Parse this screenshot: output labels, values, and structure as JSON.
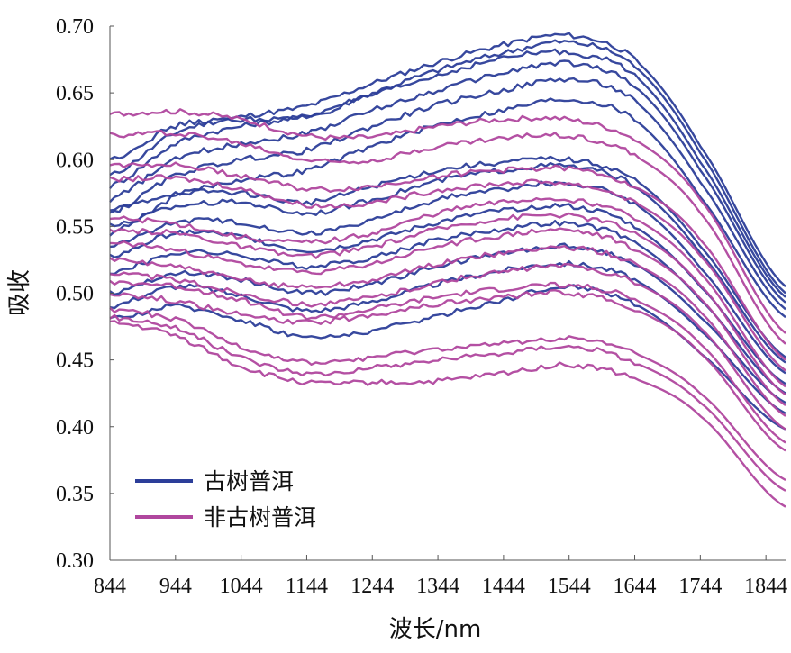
{
  "chart_data": {
    "type": "line",
    "xlabel": "波长/nm",
    "ylabel": "吸收",
    "xlim": [
      844,
      1874
    ],
    "ylim": [
      0.3,
      0.7
    ],
    "x": [
      844,
      944,
      1044,
      1144,
      1244,
      1344,
      1444,
      1544,
      1644,
      1744,
      1874
    ],
    "x_ticks": [
      "844",
      "944",
      "1044",
      "1144",
      "1244",
      "1344",
      "1444",
      "1544",
      "1644",
      "1744",
      "1844"
    ],
    "x_tick_values": [
      844,
      944,
      1044,
      1144,
      1244,
      1344,
      1444,
      1544,
      1644,
      1744,
      1844
    ],
    "y_ticks": [
      "0.30",
      "0.35",
      "0.40",
      "0.45",
      "0.50",
      "0.55",
      "0.60",
      "0.65",
      "0.70"
    ],
    "y_tick_values": [
      0.3,
      0.35,
      0.4,
      0.45,
      0.5,
      0.55,
      0.6,
      0.65,
      0.7
    ],
    "grid": false,
    "legend_position": "bottom-left",
    "groups": [
      {
        "name": "古树普洱",
        "color": "#2c3e99",
        "series": [
          {
            "values": [
              0.588,
              0.62,
              0.632,
              0.64,
              0.657,
              0.673,
              0.686,
              0.693,
              0.675,
              0.61,
              0.505
            ]
          },
          {
            "values": [
              0.58,
              0.612,
              0.625,
              0.633,
              0.65,
              0.667,
              0.68,
              0.688,
              0.67,
              0.605,
              0.5
            ]
          },
          {
            "values": [
              0.6,
              0.625,
              0.63,
              0.632,
              0.648,
              0.663,
              0.676,
              0.68,
              0.663,
              0.598,
              0.497
            ]
          },
          {
            "values": [
              0.57,
              0.6,
              0.612,
              0.62,
              0.637,
              0.652,
              0.665,
              0.672,
              0.655,
              0.592,
              0.493
            ]
          },
          {
            "values": [
              0.56,
              0.588,
              0.6,
              0.607,
              0.625,
              0.641,
              0.652,
              0.66,
              0.644,
              0.583,
              0.488
            ]
          },
          {
            "values": [
              0.545,
              0.572,
              0.585,
              0.592,
              0.61,
              0.626,
              0.637,
              0.645,
              0.63,
              0.572,
              0.482
            ]
          },
          {
            "values": [
              0.562,
              0.575,
              0.575,
              0.568,
              0.58,
              0.592,
              0.598,
              0.6,
              0.585,
              0.535,
              0.452
            ]
          },
          {
            "values": [
              0.55,
              0.565,
              0.568,
              0.56,
              0.57,
              0.584,
              0.592,
              0.595,
              0.58,
              0.53,
              0.448
            ]
          },
          {
            "values": [
              0.535,
              0.553,
              0.553,
              0.545,
              0.555,
              0.57,
              0.578,
              0.582,
              0.567,
              0.519,
              0.44
            ]
          },
          {
            "values": [
              0.527,
              0.545,
              0.542,
              0.532,
              0.54,
              0.553,
              0.562,
              0.565,
              0.55,
              0.505,
              0.432
            ]
          },
          {
            "values": [
              0.515,
              0.53,
              0.528,
              0.52,
              0.527,
              0.54,
              0.548,
              0.552,
              0.538,
              0.495,
              0.425
            ]
          },
          {
            "values": [
              0.5,
              0.515,
              0.51,
              0.5,
              0.507,
              0.52,
              0.53,
              0.535,
              0.522,
              0.482,
              0.418
            ]
          },
          {
            "values": [
              0.49,
              0.505,
              0.498,
              0.487,
              0.494,
              0.507,
              0.517,
              0.522,
              0.51,
              0.472,
              0.41
            ]
          },
          {
            "values": [
              0.48,
              0.49,
              0.48,
              0.467,
              0.472,
              0.483,
              0.495,
              0.505,
              0.492,
              0.455,
              0.398
            ]
          }
        ]
      },
      {
        "name": "非古树普洱",
        "color": "#b0479e",
        "series": [
          {
            "values": [
              0.634,
              0.636,
              0.63,
              0.618,
              0.617,
              0.625,
              0.63,
              0.63,
              0.615,
              0.57,
              0.47
            ]
          },
          {
            "values": [
              0.618,
              0.62,
              0.612,
              0.6,
              0.6,
              0.61,
              0.616,
              0.618,
              0.603,
              0.56,
              0.462
            ]
          },
          {
            "values": [
              0.596,
              0.596,
              0.588,
              0.578,
              0.58,
              0.588,
              0.592,
              0.593,
              0.58,
              0.54,
              0.45
            ]
          },
          {
            "values": [
              0.585,
              0.586,
              0.578,
              0.566,
              0.568,
              0.577,
              0.582,
              0.582,
              0.568,
              0.528,
              0.442
            ]
          },
          {
            "values": [
              0.556,
              0.552,
              0.542,
              0.538,
              0.545,
              0.56,
              0.568,
              0.57,
              0.556,
              0.515,
              0.43
            ]
          },
          {
            "values": [
              0.546,
              0.545,
              0.535,
              0.528,
              0.535,
              0.548,
              0.556,
              0.558,
              0.545,
              0.506,
              0.424
            ]
          },
          {
            "values": [
              0.538,
              0.532,
              0.522,
              0.516,
              0.522,
              0.535,
              0.543,
              0.547,
              0.533,
              0.496,
              0.416
            ]
          },
          {
            "values": [
              0.525,
              0.52,
              0.51,
              0.505,
              0.51,
              0.522,
              0.53,
              0.534,
              0.522,
              0.486,
              0.408
            ]
          },
          {
            "values": [
              0.515,
              0.51,
              0.5,
              0.492,
              0.497,
              0.508,
              0.516,
              0.52,
              0.508,
              0.474,
              0.398
            ]
          },
          {
            "values": [
              0.508,
              0.505,
              0.495,
              0.482,
              0.488,
              0.497,
              0.503,
              0.506,
              0.495,
              0.462,
              0.388
            ]
          },
          {
            "values": [
              0.5,
              0.494,
              0.484,
              0.478,
              0.484,
              0.492,
              0.497,
              0.5,
              0.488,
              0.455,
              0.382
            ]
          },
          {
            "values": [
              0.488,
              0.48,
              0.46,
              0.448,
              0.452,
              0.458,
              0.462,
              0.466,
              0.455,
              0.425,
              0.36
            ]
          },
          {
            "values": [
              0.482,
              0.474,
              0.452,
              0.44,
              0.444,
              0.45,
              0.455,
              0.46,
              0.448,
              0.418,
              0.352
            ]
          },
          {
            "values": [
              0.478,
              0.468,
              0.445,
              0.433,
              0.433,
              0.434,
              0.44,
              0.446,
              0.436,
              0.408,
              0.34
            ]
          }
        ]
      }
    ]
  }
}
